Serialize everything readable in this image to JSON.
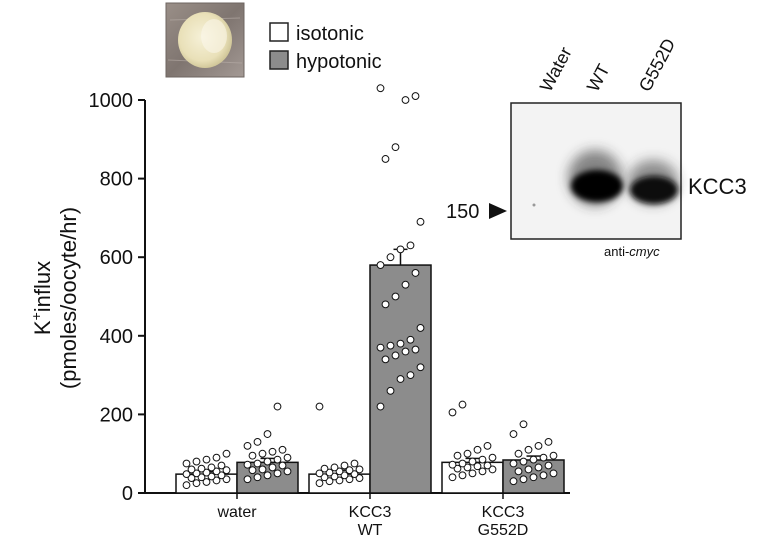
{
  "legend": {
    "items": [
      {
        "label": "isotonic",
        "color": "#ffffff"
      },
      {
        "label": "hypotonic",
        "color": "#8c8c8c"
      }
    ]
  },
  "blot": {
    "lanes": [
      "Water",
      "WT",
      "G552D"
    ],
    "band_label": "KCC3",
    "marker_label": "150",
    "antibody_prefix": "anti-",
    "antibody_name": "cmyc"
  },
  "chart_data": {
    "type": "bar",
    "ylabel_line1_main": "K",
    "ylabel_line1_sup": "+",
    "ylabel_line1_rest": "influx",
    "ylabel_line2": "(pmoles/oocyte/hr)",
    "ylim": [
      0,
      1000
    ],
    "yticks": [
      "0",
      "200",
      "400",
      "600",
      "800",
      "1000"
    ],
    "categories": [
      {
        "line1": "water",
        "line2": ""
      },
      {
        "line1": "KCC3",
        "line2": "WT"
      },
      {
        "line1": "KCC3",
        "line2": "G552D"
      }
    ],
    "series": [
      {
        "name": "isotonic",
        "color": "#ffffff",
        "values": [
          48,
          48,
          78
        ],
        "errors": [
          6,
          10,
          10
        ],
        "points": [
          [
            20,
            25,
            28,
            32,
            35,
            38,
            40,
            42,
            45,
            48,
            50,
            52,
            55,
            58,
            60,
            62,
            65,
            70,
            75,
            80,
            85,
            90,
            100
          ],
          [
            25,
            30,
            32,
            35,
            38,
            40,
            42,
            45,
            48,
            50,
            52,
            55,
            58,
            60,
            62,
            65,
            70,
            75,
            220
          ],
          [
            40,
            45,
            50,
            55,
            60,
            62,
            65,
            68,
            70,
            72,
            75,
            80,
            85,
            90,
            95,
            100,
            110,
            120,
            205,
            225
          ]
        ]
      },
      {
        "name": "hypotonic",
        "color": "#8c8c8c",
        "values": [
          78,
          580,
          84
        ],
        "errors": [
          10,
          40,
          10
        ],
        "points": [
          [
            35,
            40,
            45,
            50,
            55,
            58,
            60,
            65,
            70,
            72,
            75,
            80,
            85,
            90,
            95,
            100,
            105,
            110,
            120,
            130,
            150,
            220
          ],
          [
            220,
            260,
            290,
            300,
            320,
            340,
            350,
            360,
            365,
            370,
            375,
            380,
            390,
            420,
            480,
            500,
            530,
            560,
            580,
            600,
            620,
            630,
            690,
            850,
            880,
            1000,
            1010,
            1030
          ],
          [
            30,
            35,
            40,
            45,
            50,
            55,
            60,
            65,
            70,
            75,
            80,
            85,
            90,
            95,
            100,
            110,
            120,
            130,
            150,
            175
          ]
        ]
      }
    ]
  }
}
